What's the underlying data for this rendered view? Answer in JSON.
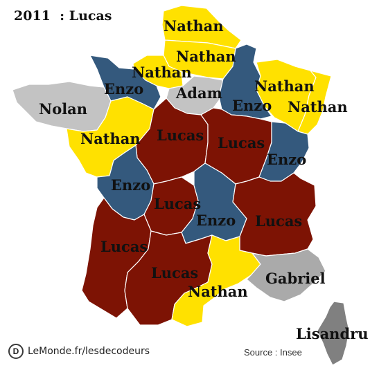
{
  "title": "2011  : Lucas",
  "brand": "LeMonde.fr/lesdecodeurs",
  "brand_logo": "D",
  "source": "Source : Insee",
  "colors": {
    "nathan": "#ffe100",
    "enzo": "#34597d",
    "lucas": "#7d1304",
    "nolan": "#c3c3c3",
    "adam": "#c3c3c3",
    "gabriel": "#aaaaaa",
    "lisandru": "#808080"
  },
  "regions": [
    {
      "id": "nord-pas-de-calais",
      "name": "Nathan"
    },
    {
      "id": "picardie",
      "name": "Nathan"
    },
    {
      "id": "haute-normandie",
      "name": "Nathan"
    },
    {
      "id": "basse-normandie",
      "name": "Enzo"
    },
    {
      "id": "ile-de-france",
      "name": "Adam"
    },
    {
      "id": "champagne-ardenne",
      "name": "Enzo"
    },
    {
      "id": "lorraine",
      "name": "Nathan"
    },
    {
      "id": "alsace",
      "name": "Nathan"
    },
    {
      "id": "bretagne",
      "name": "Nolan"
    },
    {
      "id": "pays-de-la-loire",
      "name": "Nathan"
    },
    {
      "id": "centre",
      "name": "Lucas"
    },
    {
      "id": "bourgogne",
      "name": "Lucas"
    },
    {
      "id": "franche-comte",
      "name": "Enzo"
    },
    {
      "id": "poitou-charentes",
      "name": "Enzo"
    },
    {
      "id": "limousin",
      "name": "Lucas"
    },
    {
      "id": "auvergne",
      "name": "Enzo"
    },
    {
      "id": "rhone-alpes",
      "name": "Lucas"
    },
    {
      "id": "aquitaine",
      "name": "Lucas"
    },
    {
      "id": "midi-pyrenees",
      "name": "Lucas"
    },
    {
      "id": "languedoc-roussillon",
      "name": "Nathan"
    },
    {
      "id": "paca",
      "name": "Gabriel"
    },
    {
      "id": "corse",
      "name": "Lisandru"
    }
  ]
}
